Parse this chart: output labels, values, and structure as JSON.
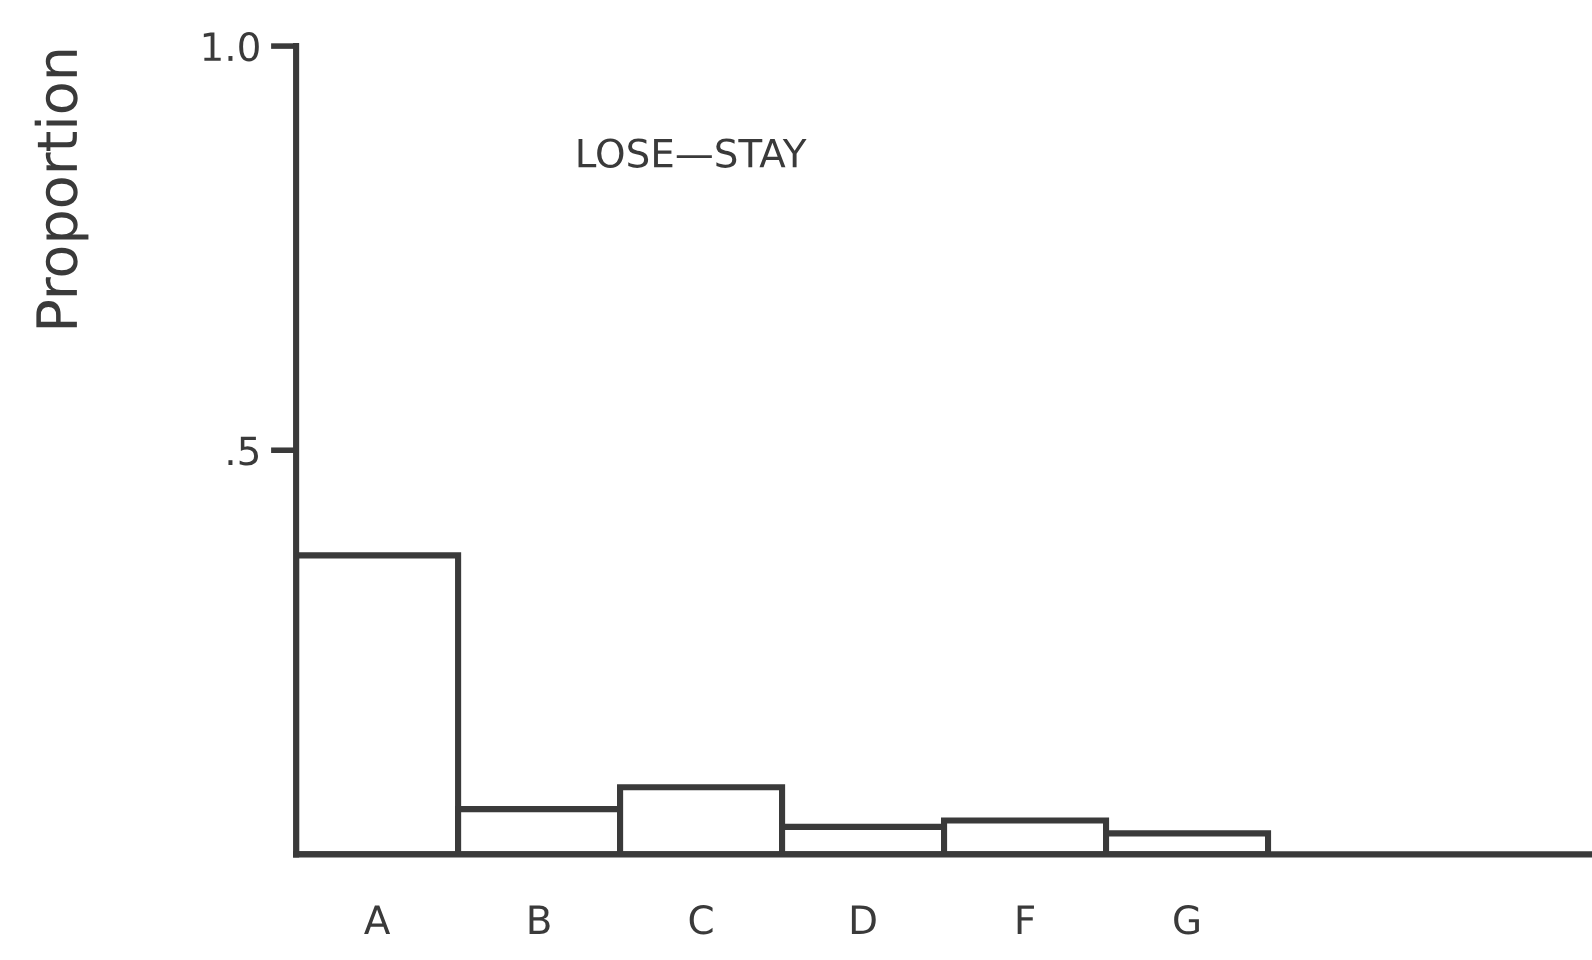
{
  "chart_data": {
    "type": "bar",
    "ylabel": "Proportion",
    "annotations": [
      "LOSE—STAY"
    ],
    "categories": [
      "A",
      "B",
      "C",
      "D",
      "F",
      "G"
    ],
    "values": [
      0.37,
      0.056,
      0.083,
      0.034,
      0.042,
      0.026
    ],
    "color": "#ffffff",
    "ylim": [
      0,
      1
    ],
    "yticks": [
      {
        "value": 0.5,
        "label": ".5"
      },
      {
        "value": 1,
        "label": "1.0"
      }
    ],
    "grid": false,
    "legend": false
  }
}
